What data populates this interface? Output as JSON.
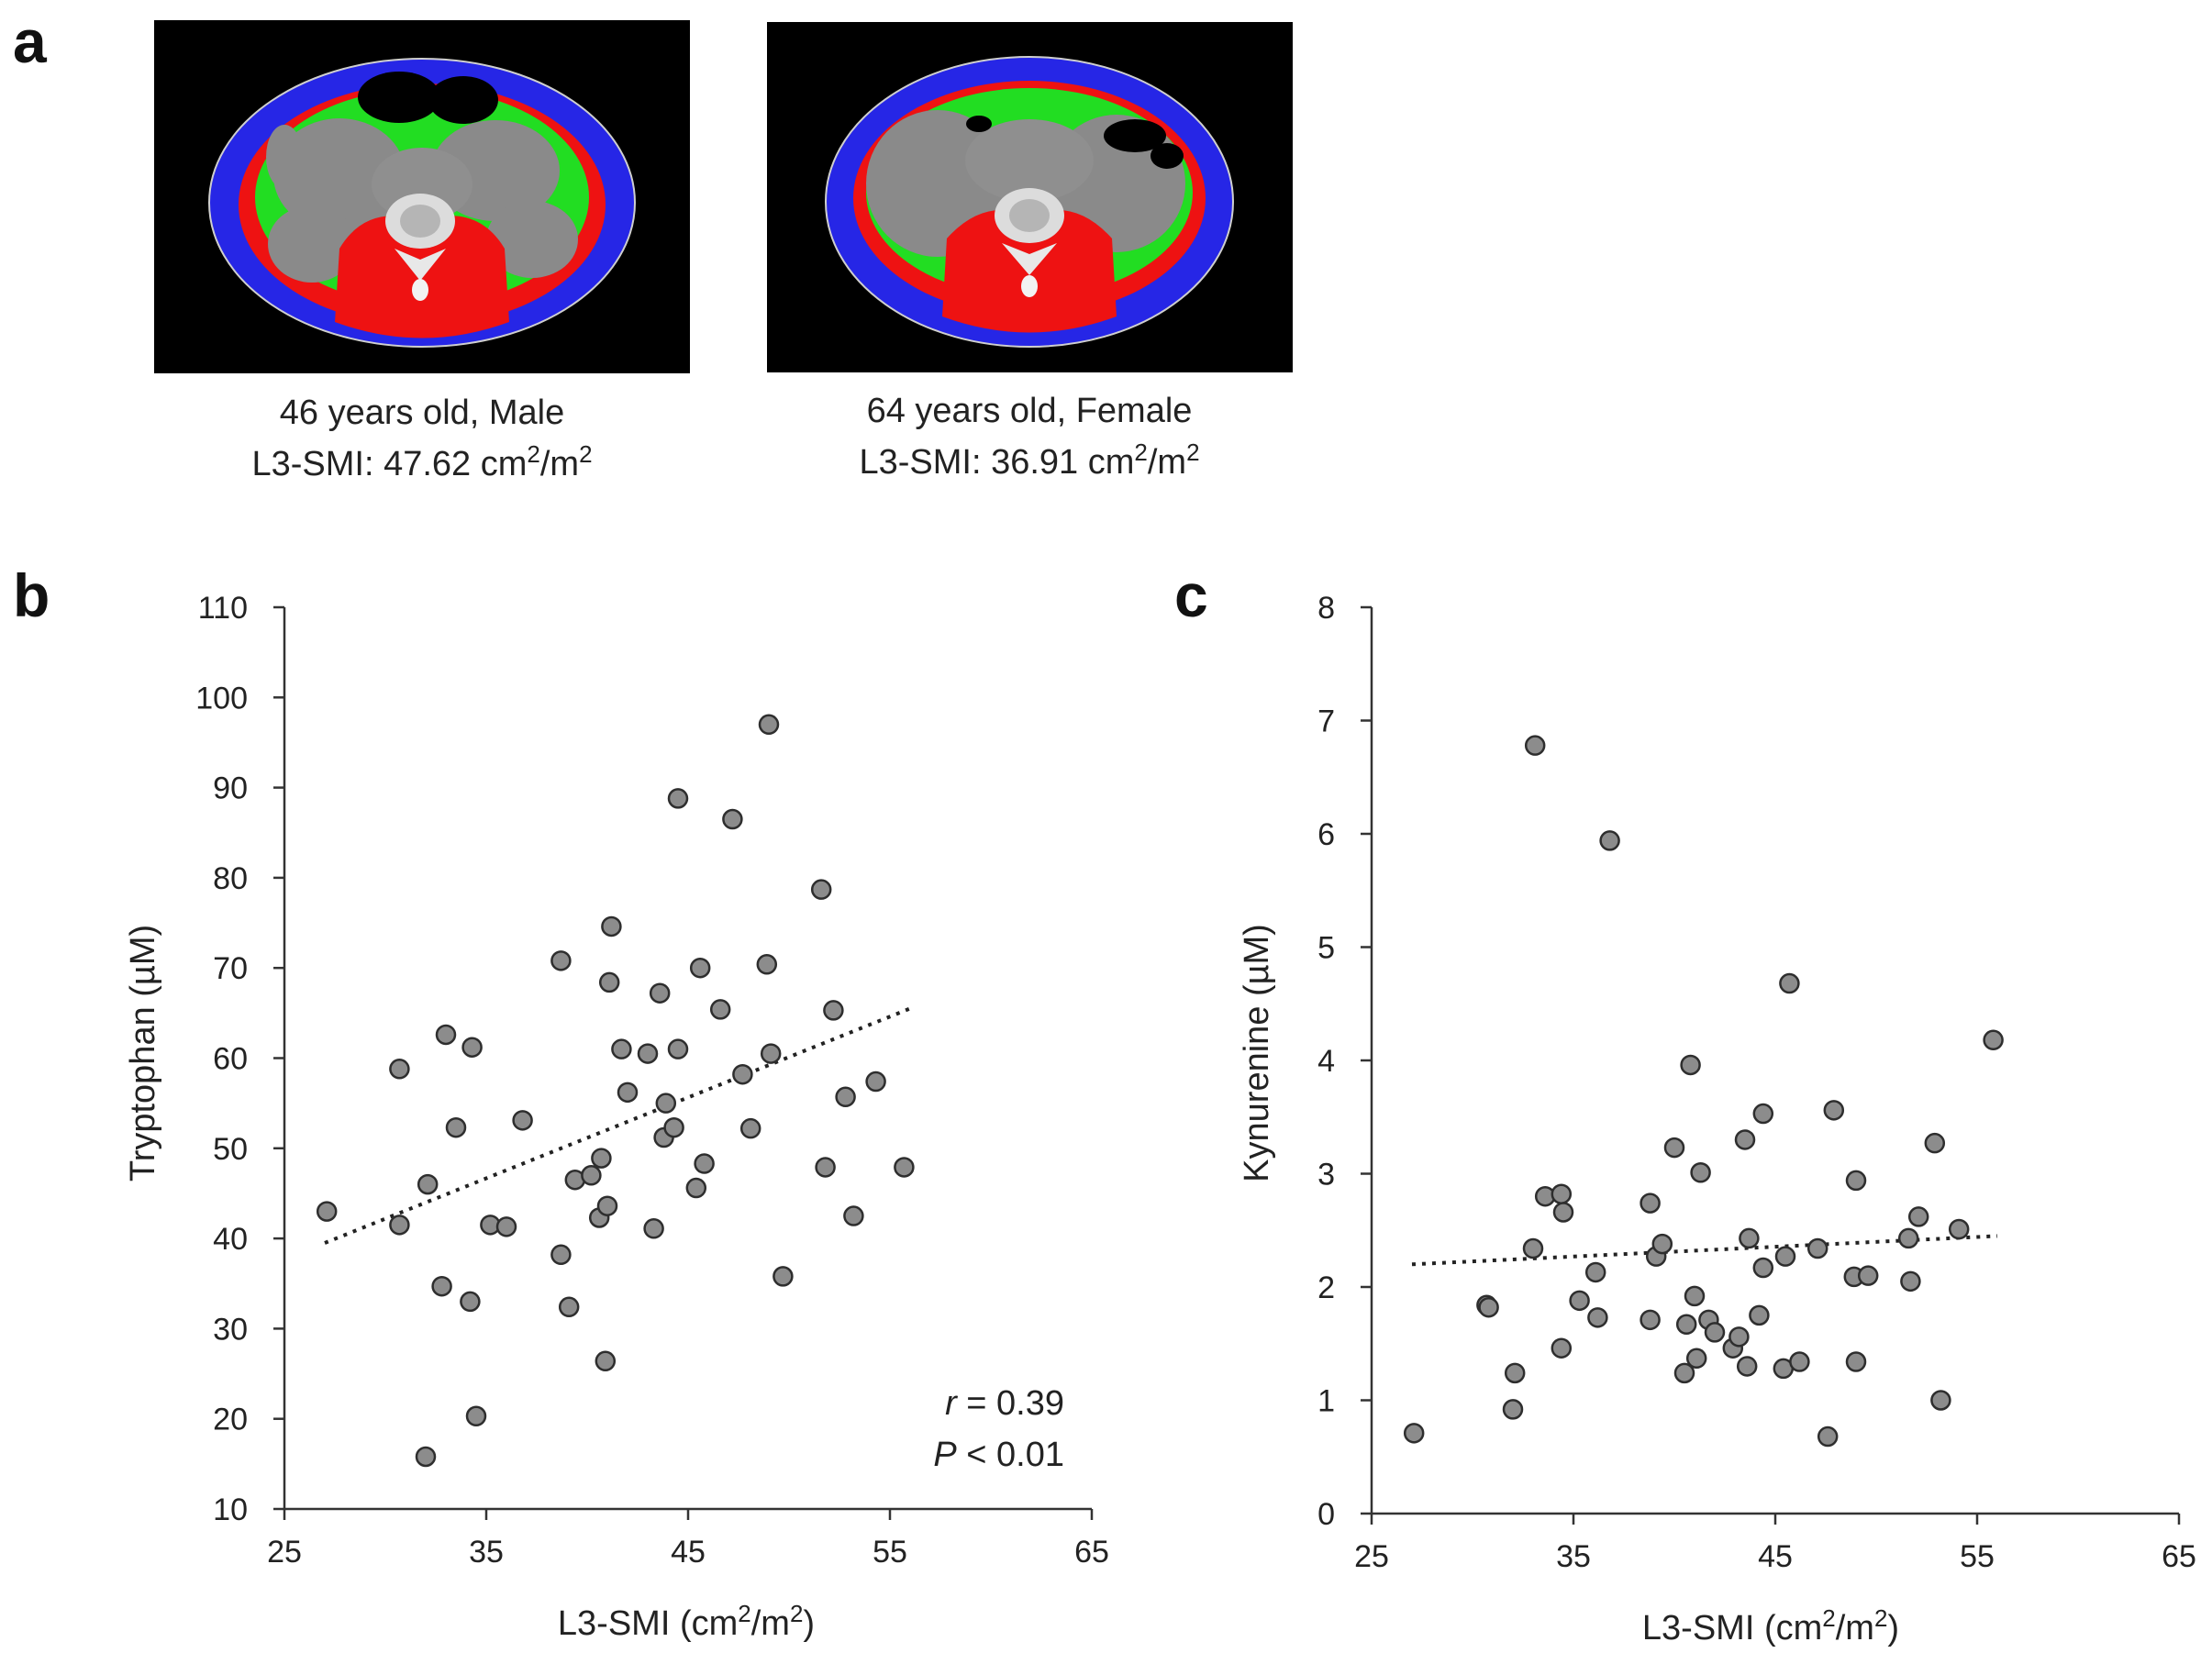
{
  "panel_a": {
    "label": "a",
    "scans": [
      {
        "caption_line1": "46 years old, Male",
        "caption_line2_prefix": "L3-SMI: 47.62 cm",
        "caption_line2_mid": "/m",
        "caption_line2_sup": "2"
      },
      {
        "caption_line1": "64 years old, Female",
        "caption_line2_prefix": "L3-SMI: 36.91 cm",
        "caption_line2_mid": "/m",
        "caption_line2_sup": "2"
      }
    ],
    "colors": {
      "background": "#000000",
      "subcutaneous_fat": "#2020e8",
      "muscle": "#ee1010",
      "visceral_fat": "#22e022",
      "organs": "#8a8a8a",
      "bone": "#f0f0f0"
    }
  },
  "chart_data": [
    {
      "type": "scatter",
      "panel_label": "b",
      "ylabel": "Tryptophan (µM)",
      "xlabel_prefix": "L3-SMI (cm",
      "xlabel_mid": "/m",
      "xlabel_suffix": ")",
      "xlabel_sup": "2",
      "xlim": [
        25,
        65
      ],
      "ylim": [
        10,
        110
      ],
      "xticks": [
        25,
        35,
        45,
        55,
        65
      ],
      "yticks": [
        10,
        20,
        30,
        40,
        50,
        60,
        70,
        80,
        90,
        100,
        110
      ],
      "trendline": {
        "x": [
          27,
          56
        ],
        "y": [
          39.5,
          65.5
        ]
      },
      "stats": {
        "r_symbol": "r",
        "r_text": " = 0.39",
        "p_symbol": "P",
        "p_text": " < 0.01"
      },
      "points": [
        {
          "x": 27.1,
          "y": 43
        },
        {
          "x": 30.7,
          "y": 41.5
        },
        {
          "x": 30.7,
          "y": 58.8
        },
        {
          "x": 32.0,
          "y": 15.8
        },
        {
          "x": 32.1,
          "y": 46
        },
        {
          "x": 32.8,
          "y": 34.7
        },
        {
          "x": 33.0,
          "y": 62.6
        },
        {
          "x": 33.5,
          "y": 52.3
        },
        {
          "x": 34.2,
          "y": 33
        },
        {
          "x": 34.3,
          "y": 61.2
        },
        {
          "x": 34.5,
          "y": 20.3
        },
        {
          "x": 35.2,
          "y": 41.5
        },
        {
          "x": 36.0,
          "y": 41.3
        },
        {
          "x": 36.8,
          "y": 53.1
        },
        {
          "x": 38.7,
          "y": 38.2
        },
        {
          "x": 38.7,
          "y": 70.8
        },
        {
          "x": 39.1,
          "y": 32.4
        },
        {
          "x": 39.4,
          "y": 46.5
        },
        {
          "x": 40.2,
          "y": 47
        },
        {
          "x": 40.6,
          "y": 42.3
        },
        {
          "x": 40.7,
          "y": 48.9
        },
        {
          "x": 40.9,
          "y": 26.4
        },
        {
          "x": 41.0,
          "y": 43.6
        },
        {
          "x": 41.1,
          "y": 68.4
        },
        {
          "x": 41.2,
          "y": 74.6
        },
        {
          "x": 41.7,
          "y": 61
        },
        {
          "x": 42.0,
          "y": 56.2
        },
        {
          "x": 43.0,
          "y": 60.5
        },
        {
          "x": 43.3,
          "y": 41.1
        },
        {
          "x": 43.6,
          "y": 67.2
        },
        {
          "x": 43.8,
          "y": 51.2
        },
        {
          "x": 43.9,
          "y": 55
        },
        {
          "x": 44.3,
          "y": 52.3
        },
        {
          "x": 44.5,
          "y": 61
        },
        {
          "x": 44.5,
          "y": 88.8
        },
        {
          "x": 45.4,
          "y": 45.6
        },
        {
          "x": 45.6,
          "y": 70
        },
        {
          "x": 45.8,
          "y": 48.3
        },
        {
          "x": 46.6,
          "y": 65.4
        },
        {
          "x": 47.2,
          "y": 86.5
        },
        {
          "x": 47.7,
          "y": 58.2
        },
        {
          "x": 48.1,
          "y": 52.2
        },
        {
          "x": 48.9,
          "y": 70.4
        },
        {
          "x": 49.0,
          "y": 97
        },
        {
          "x": 49.1,
          "y": 60.5
        },
        {
          "x": 49.7,
          "y": 35.8
        },
        {
          "x": 51.6,
          "y": 78.7
        },
        {
          "x": 51.8,
          "y": 47.9
        },
        {
          "x": 52.2,
          "y": 65.3
        },
        {
          "x": 52.8,
          "y": 55.7
        },
        {
          "x": 53.2,
          "y": 42.5
        },
        {
          "x": 54.3,
          "y": 57.4
        },
        {
          "x": 55.7,
          "y": 47.9
        }
      ]
    },
    {
      "type": "scatter",
      "panel_label": "c",
      "ylabel": "Kynurenine (µM)",
      "xlabel_prefix": "L3-SMI (cm",
      "xlabel_mid": "/m",
      "xlabel_suffix": ")",
      "xlabel_sup": "2",
      "xlim": [
        25,
        65
      ],
      "ylim": [
        0,
        8
      ],
      "xticks": [
        25,
        35,
        45,
        55,
        65
      ],
      "yticks": [
        0,
        1,
        2,
        3,
        4,
        5,
        6,
        7,
        8
      ],
      "trendline": {
        "x": [
          27,
          56
        ],
        "y": [
          2.2,
          2.45
        ]
      },
      "points": [
        {
          "x": 27.1,
          "y": 0.71
        },
        {
          "x": 30.7,
          "y": 1.84
        },
        {
          "x": 30.8,
          "y": 1.82
        },
        {
          "x": 32.0,
          "y": 0.92
        },
        {
          "x": 32.1,
          "y": 1.24
        },
        {
          "x": 33.0,
          "y": 2.34
        },
        {
          "x": 33.1,
          "y": 6.78
        },
        {
          "x": 33.6,
          "y": 2.8
        },
        {
          "x": 34.4,
          "y": 2.82
        },
        {
          "x": 34.5,
          "y": 2.66
        },
        {
          "x": 34.4,
          "y": 1.46
        },
        {
          "x": 35.3,
          "y": 1.88
        },
        {
          "x": 36.1,
          "y": 2.13
        },
        {
          "x": 36.2,
          "y": 1.73
        },
        {
          "x": 36.8,
          "y": 5.94
        },
        {
          "x": 38.8,
          "y": 2.74
        },
        {
          "x": 38.8,
          "y": 1.71
        },
        {
          "x": 39.1,
          "y": 2.27
        },
        {
          "x": 39.4,
          "y": 2.38
        },
        {
          "x": 40.0,
          "y": 3.23
        },
        {
          "x": 40.5,
          "y": 1.24
        },
        {
          "x": 40.6,
          "y": 1.67
        },
        {
          "x": 40.8,
          "y": 3.96
        },
        {
          "x": 41.0,
          "y": 1.92
        },
        {
          "x": 41.1,
          "y": 1.37
        },
        {
          "x": 41.3,
          "y": 3.01
        },
        {
          "x": 41.7,
          "y": 1.71
        },
        {
          "x": 42.0,
          "y": 1.6
        },
        {
          "x": 42.9,
          "y": 1.46
        },
        {
          "x": 43.2,
          "y": 1.56
        },
        {
          "x": 43.5,
          "y": 3.3
        },
        {
          "x": 43.6,
          "y": 1.3
        },
        {
          "x": 43.7,
          "y": 2.43
        },
        {
          "x": 44.2,
          "y": 1.75
        },
        {
          "x": 44.4,
          "y": 2.17
        },
        {
          "x": 44.4,
          "y": 3.53
        },
        {
          "x": 45.4,
          "y": 1.28
        },
        {
          "x": 45.5,
          "y": 2.27
        },
        {
          "x": 45.7,
          "y": 4.68
        },
        {
          "x": 46.2,
          "y": 1.34
        },
        {
          "x": 47.1,
          "y": 2.34
        },
        {
          "x": 47.6,
          "y": 0.68
        },
        {
          "x": 47.9,
          "y": 3.56
        },
        {
          "x": 48.9,
          "y": 2.09
        },
        {
          "x": 49.0,
          "y": 1.34
        },
        {
          "x": 49.0,
          "y": 2.94
        },
        {
          "x": 49.6,
          "y": 2.1
        },
        {
          "x": 51.6,
          "y": 2.43
        },
        {
          "x": 51.7,
          "y": 2.05
        },
        {
          "x": 52.1,
          "y": 2.62
        },
        {
          "x": 52.9,
          "y": 3.27
        },
        {
          "x": 53.2,
          "y": 1.0
        },
        {
          "x": 54.1,
          "y": 2.51
        },
        {
          "x": 55.8,
          "y": 4.18
        }
      ]
    }
  ]
}
